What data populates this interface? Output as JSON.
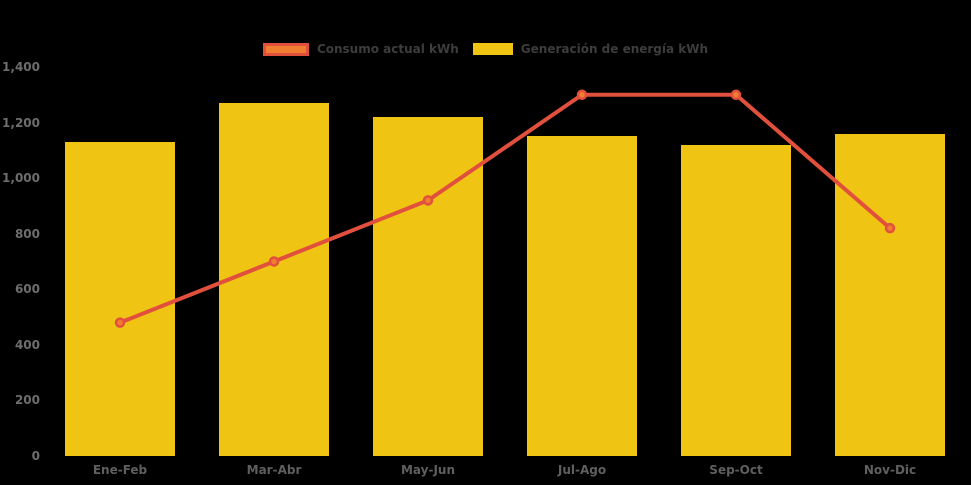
{
  "chart_data": {
    "type": "mixed",
    "title": "",
    "categories": [
      "Ene-Feb",
      "Mar-Abr",
      "May-Jun",
      "Jul-Ago",
      "Sep-Oct",
      "Nov-Dic"
    ],
    "series": [
      {
        "name": "Consumo actual kWh",
        "type": "line",
        "values": [
          480,
          700,
          920,
          1300,
          1300,
          820
        ],
        "color": "#e1503c",
        "marker_color": "#f07d30"
      },
      {
        "name": "Generación de energía kWh",
        "type": "bar",
        "values": [
          1130,
          1270,
          1220,
          1150,
          1120,
          1160
        ],
        "color": "#f0c412"
      }
    ],
    "xlabel": "",
    "ylabel": "",
    "ylim": [
      0,
      1400
    ],
    "ytick_step": 200,
    "yticks": [
      "0",
      "200",
      "400",
      "600",
      "800",
      "1,000",
      "1,200",
      "1,400"
    ],
    "grid": false,
    "legend_position": "top",
    "background_color": "#000000",
    "axis_label_color": "#6e6e6e",
    "x_label_color": "#5f5f5f",
    "legend_text_color": "#3d3d3d"
  }
}
